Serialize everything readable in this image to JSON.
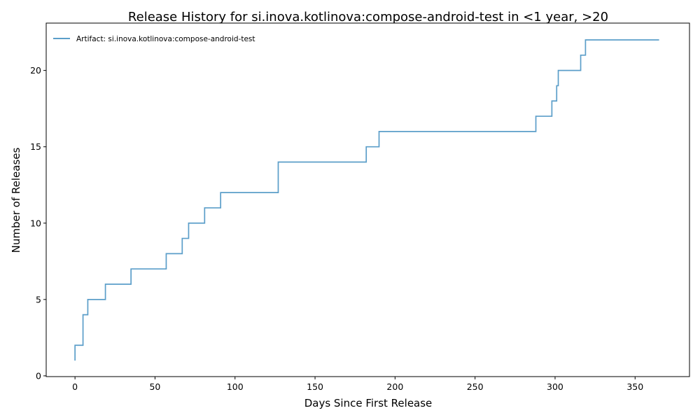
{
  "chart_data": {
    "type": "line",
    "title": "Release History for si.inova.kotlinova:compose-android-test in <1 year, >20",
    "xlabel": "Days Since First Release",
    "ylabel": "Number of Releases",
    "xlim": [
      -18,
      384
    ],
    "ylim": [
      -0.05,
      23.1
    ],
    "xticks": [
      0,
      50,
      100,
      150,
      200,
      250,
      300,
      350
    ],
    "yticks": [
      0,
      5,
      10,
      15,
      20
    ],
    "grid": false,
    "legend_position": "top-left",
    "step": "post",
    "series": [
      {
        "name": "Artifact: si.inova.kotlinova:compose-android-test",
        "color": "#5b9ec9",
        "x": [
          0,
          0,
          5,
          8,
          19,
          35,
          57,
          67,
          71,
          81,
          91,
          127,
          182,
          190,
          288,
          298,
          301,
          302,
          316,
          319,
          365
        ],
        "y": [
          1,
          2,
          4,
          5,
          6,
          7,
          8,
          9,
          10,
          11,
          12,
          14,
          15,
          16,
          17,
          18,
          19,
          20,
          21,
          22,
          22
        ]
      }
    ]
  }
}
